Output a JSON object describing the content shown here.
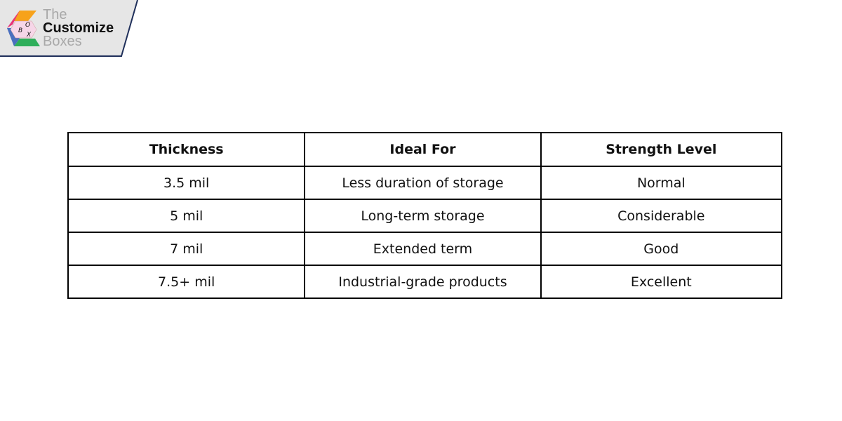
{
  "logo": {
    "line1": "The",
    "line2": "Customize",
    "line3": "Boxes",
    "cube_letters": "BOX"
  },
  "table": {
    "headers": [
      "Thickness",
      "Ideal For",
      "Strength Level"
    ],
    "rows": [
      [
        "3.5 mil",
        "Less duration of storage",
        "Normal"
      ],
      [
        "5 mil",
        "Long-term storage",
        "Considerable"
      ],
      [
        "7 mil",
        "Extended term",
        "Good"
      ],
      [
        "7.5+ mil",
        "Industrial-grade products",
        "Excellent"
      ]
    ]
  }
}
